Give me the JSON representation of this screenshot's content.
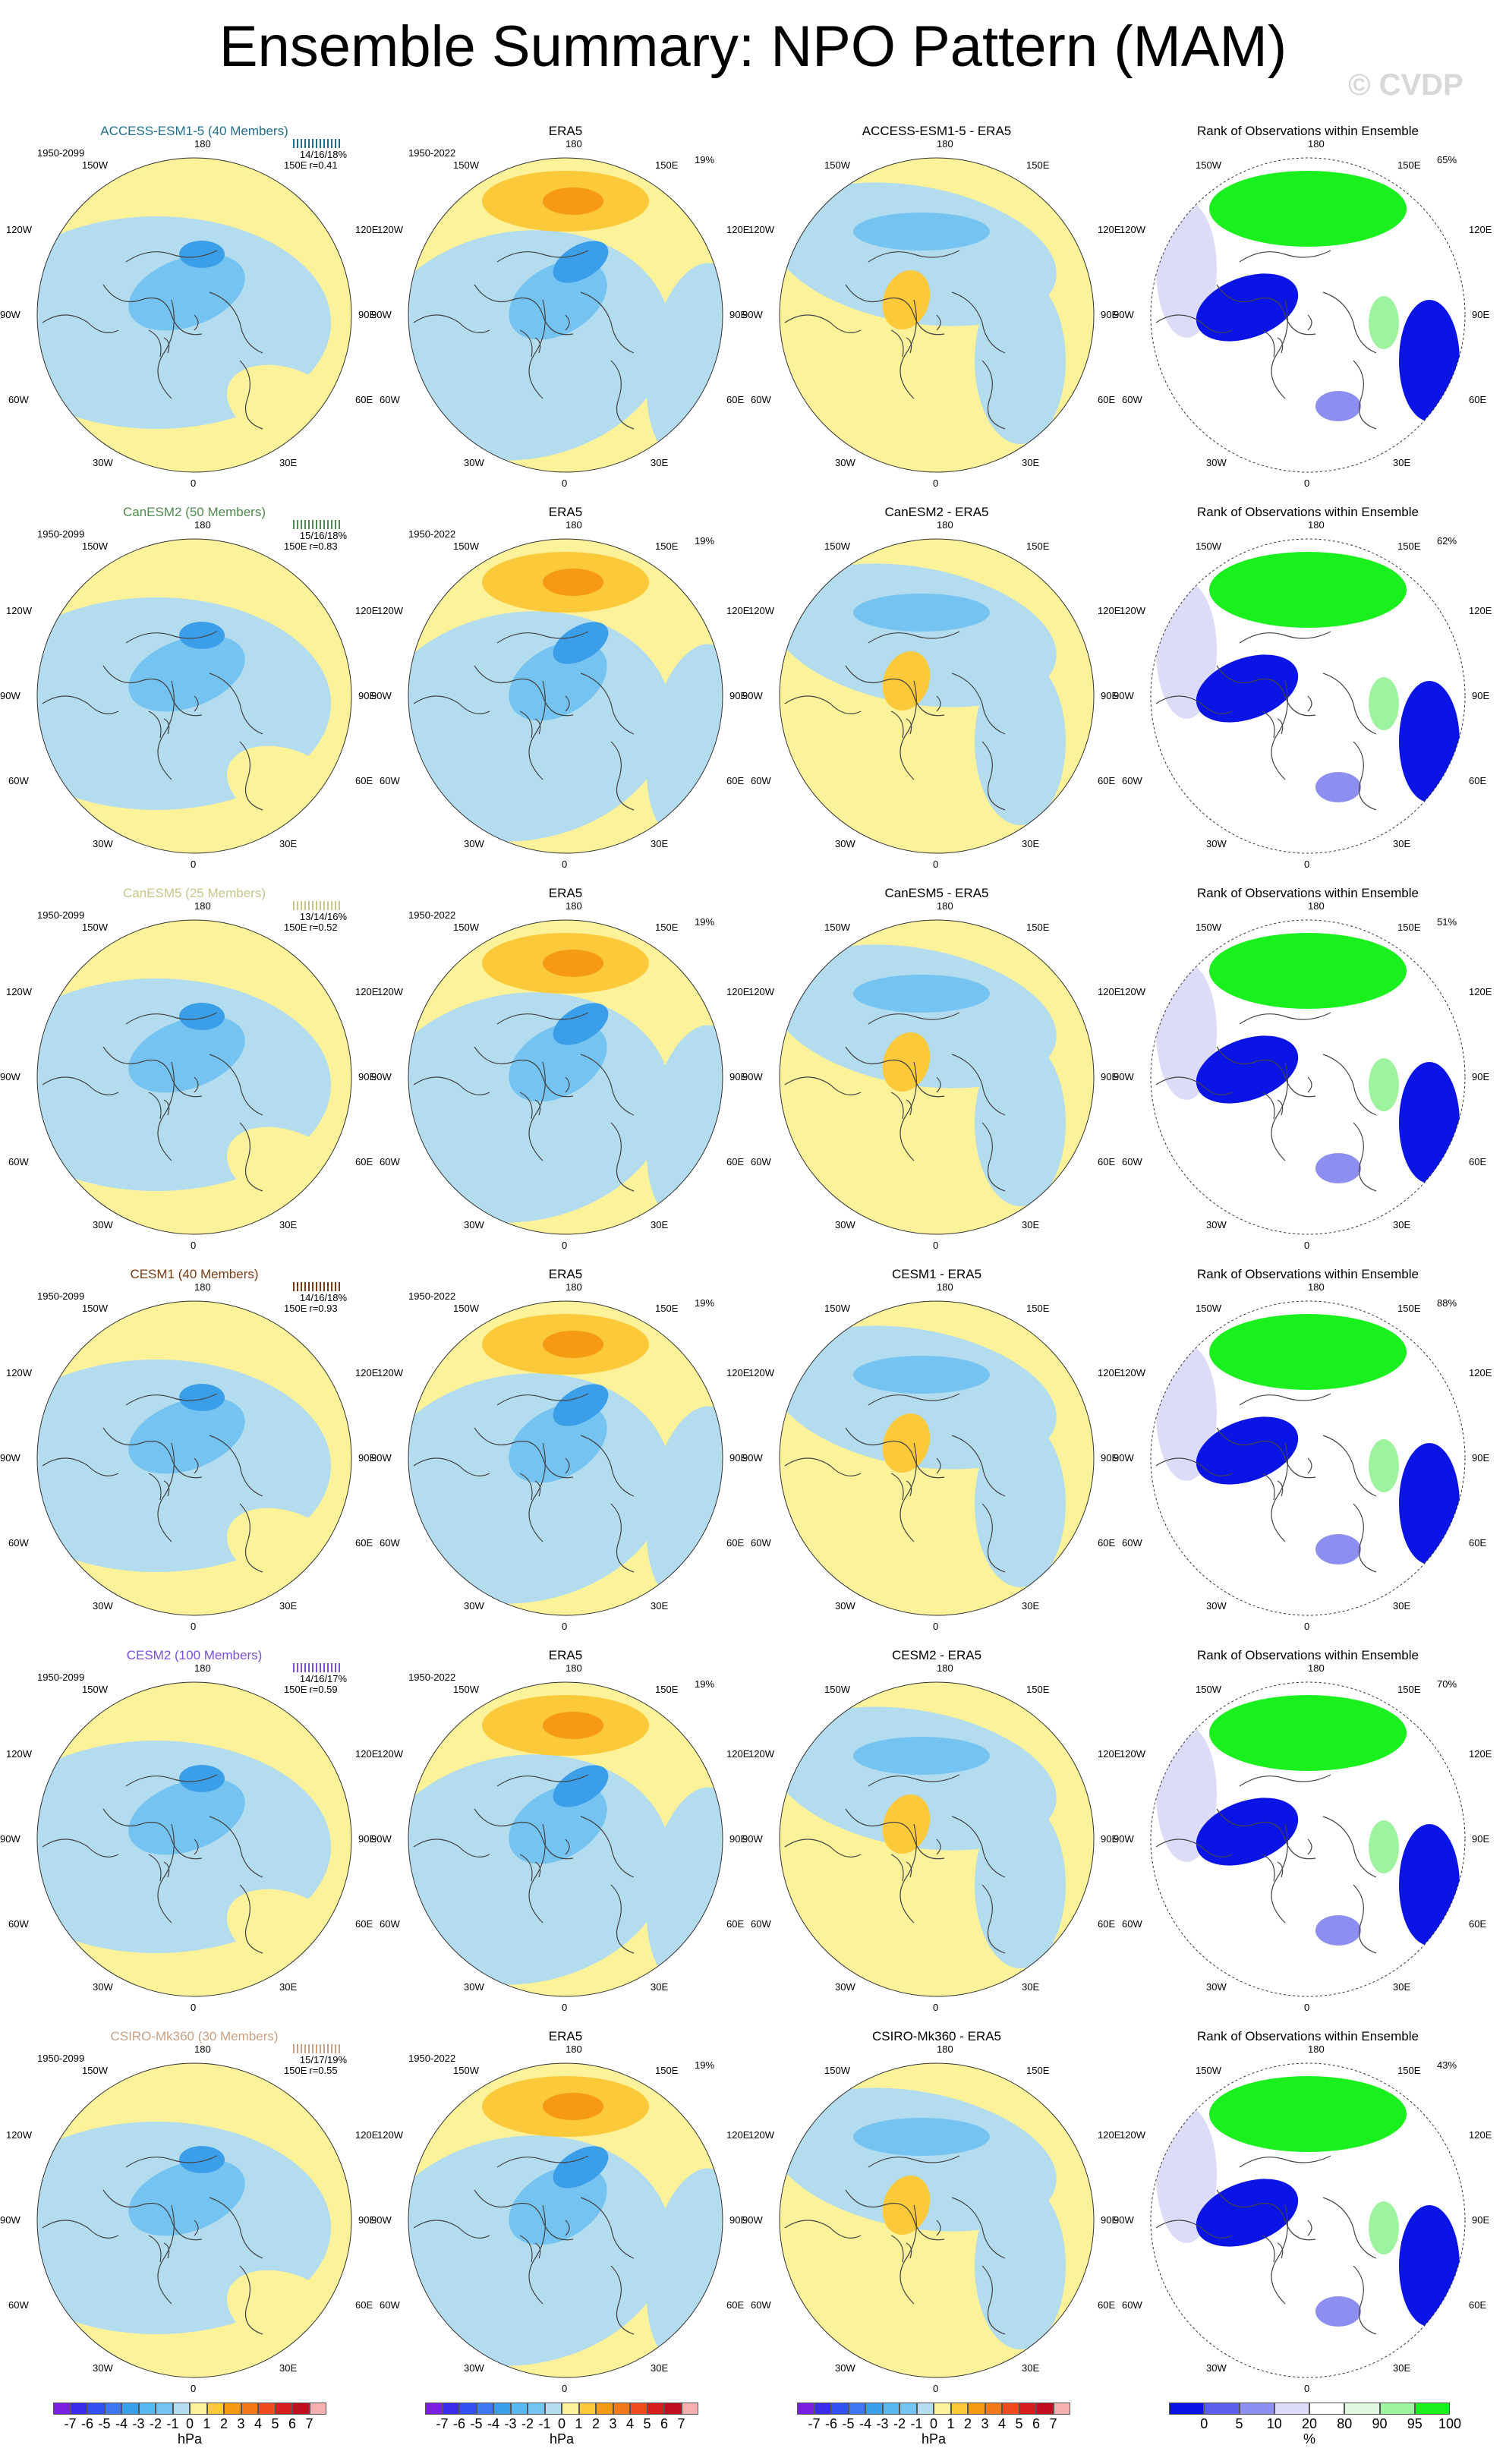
{
  "title": "Ensemble Summary: NPO Pattern (MAM)",
  "watermark": "© CVDP",
  "colors": {
    "pos1": "#fbf29a",
    "pos2": "#fcc93a",
    "pos3": "#f59a12",
    "neg1": "#b3dcef",
    "neg2": "#74c3f0",
    "neg3": "#3b9ee8",
    "rank_blue": "#0a14e4",
    "rank_lightblue": "#8c8ff0",
    "rank_paleblue": "#dcdcf8",
    "rank_green": "#19f01e",
    "rank_palegreen": "#9ef39f"
  },
  "obs_label": "ERA5",
  "obs_period": "1950-2022",
  "obs_pct": "19%",
  "rank_title": "Rank of Observations within Ensemble",
  "model_period": "1950-2099",
  "rows": [
    {
      "title": "ACCESS-ESM1-5 (40 Members)",
      "color": "#1f6e8c",
      "stats": "14/16/18%",
      "r": "r=0.41",
      "diff": "ACCESS-ESM1-5 - ERA5",
      "rank_pct": "65%"
    },
    {
      "title": "CanESM2 (50 Members)",
      "color": "#4f8a4f",
      "stats": "15/16/18%",
      "r": "r=0.83",
      "diff": "CanESM2 - ERA5",
      "rank_pct": "62%"
    },
    {
      "title": "CanESM5 (25 Members)",
      "color": "#c7c58a",
      "stats": "13/14/16%",
      "r": "r=0.52",
      "diff": "CanESM5 - ERA5",
      "rank_pct": "51%"
    },
    {
      "title": "CESM1 (40 Members)",
      "color": "#7a3a12",
      "stats": "14/16/18%",
      "r": "r=0.93",
      "diff": "CESM1 - ERA5",
      "rank_pct": "88%"
    },
    {
      "title": "CESM2 (100 Members)",
      "color": "#7a4fd6",
      "stats": "14/16/17%",
      "r": "r=0.59",
      "diff": "CESM2 - ERA5",
      "rank_pct": "70%"
    },
    {
      "title": "CSIRO-Mk360 (30 Members)",
      "color": "#c9a082",
      "stats": "15/17/19%",
      "r": "r=0.55",
      "diff": "CSIRO-Mk360 - ERA5",
      "rank_pct": "43%"
    }
  ],
  "lon_labels": {
    "top": "180",
    "tl": "150W",
    "tr": "150E",
    "ul": "120W",
    "ur": "120E",
    "ml": "90W",
    "mr": "90E",
    "ll": "60W",
    "lr": "60E",
    "bl": "30W",
    "br": "30E",
    "bottom": "0"
  },
  "chart_data": {
    "type": "heatmap",
    "colorbar_hpa": {
      "ticks": [
        "-7",
        "-6",
        "-5",
        "-4",
        "-3",
        "-2",
        "-1",
        "0",
        "1",
        "2",
        "3",
        "4",
        "5",
        "6",
        "7"
      ],
      "unit": "hPa",
      "colors": [
        "#7a1ee0",
        "#3a2be8",
        "#3150f0",
        "#3d78f0",
        "#3b9ee8",
        "#58b8f0",
        "#74c3f0",
        "#b3dcef",
        "#fbf29a",
        "#fcc93a",
        "#f59a12",
        "#f2781a",
        "#ef4b1e",
        "#d61e1e",
        "#c00e1e",
        "#f7b0b0"
      ]
    },
    "colorbar_rank": {
      "ticks": [
        "0",
        "5",
        "10",
        "20",
        "80",
        "90",
        "95",
        "100"
      ],
      "unit": "%",
      "colors": [
        "#0a14e4",
        "#5a5eea",
        "#8c8ff0",
        "#dcdcf8",
        "#ffffff",
        "#dff8df",
        "#9ef39f",
        "#19f01e"
      ]
    }
  }
}
